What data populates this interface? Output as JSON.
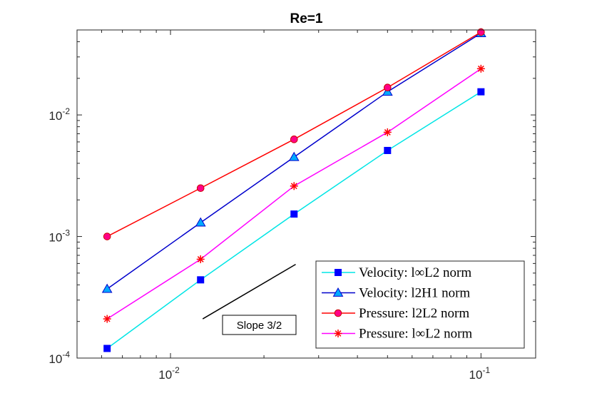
{
  "chart_data": {
    "type": "line",
    "title": "Re=1",
    "xscale": "log",
    "yscale": "log",
    "xlim": [
      0.005,
      0.15
    ],
    "ylim": [
      0.0001,
      0.05
    ],
    "xlabel": "",
    "ylabel": "",
    "x_ticks": [
      {
        "base": "10",
        "exp": "-2"
      },
      {
        "base": "10",
        "exp": "-1"
      }
    ],
    "y_ticks": [
      {
        "base": "10",
        "exp": "-4"
      },
      {
        "base": "10",
        "exp": "-3"
      },
      {
        "base": "10",
        "exp": "-2"
      }
    ],
    "x": [
      0.00625,
      0.0125,
      0.025,
      0.05,
      0.1
    ],
    "series": [
      {
        "name": "Velocity: l∞L2 norm",
        "color": "#00e5e5",
        "marker": "square",
        "marker_color": "#0000ff",
        "values": [
          0.00012,
          0.00044,
          0.00153,
          0.0051,
          0.0155
        ]
      },
      {
        "name": "Velocity: l2H1 norm",
        "color": "#0000cc",
        "marker": "triangle",
        "marker_color": "#00aaff",
        "values": [
          0.00037,
          0.0013,
          0.0045,
          0.0155,
          0.047
        ]
      },
      {
        "name": "Pressure: l2L2 norm",
        "color": "#ff0000",
        "marker": "circle",
        "marker_color": "#ff0088",
        "values": [
          0.001,
          0.0025,
          0.0063,
          0.0168,
          0.048
        ]
      },
      {
        "name": "Pressure: l∞L2 norm",
        "color": "#ff00ff",
        "marker": "star",
        "marker_color": "#ff0000",
        "values": [
          0.00021,
          0.00065,
          0.0026,
          0.0072,
          0.024
        ]
      }
    ],
    "annotation": {
      "text": "Slope 3/2",
      "line": {
        "x": [
          0.0127,
          0.0253
        ],
        "y": [
          0.00021,
          0.00059
        ]
      }
    },
    "legend_position": "bottom-right",
    "grid": false
  }
}
